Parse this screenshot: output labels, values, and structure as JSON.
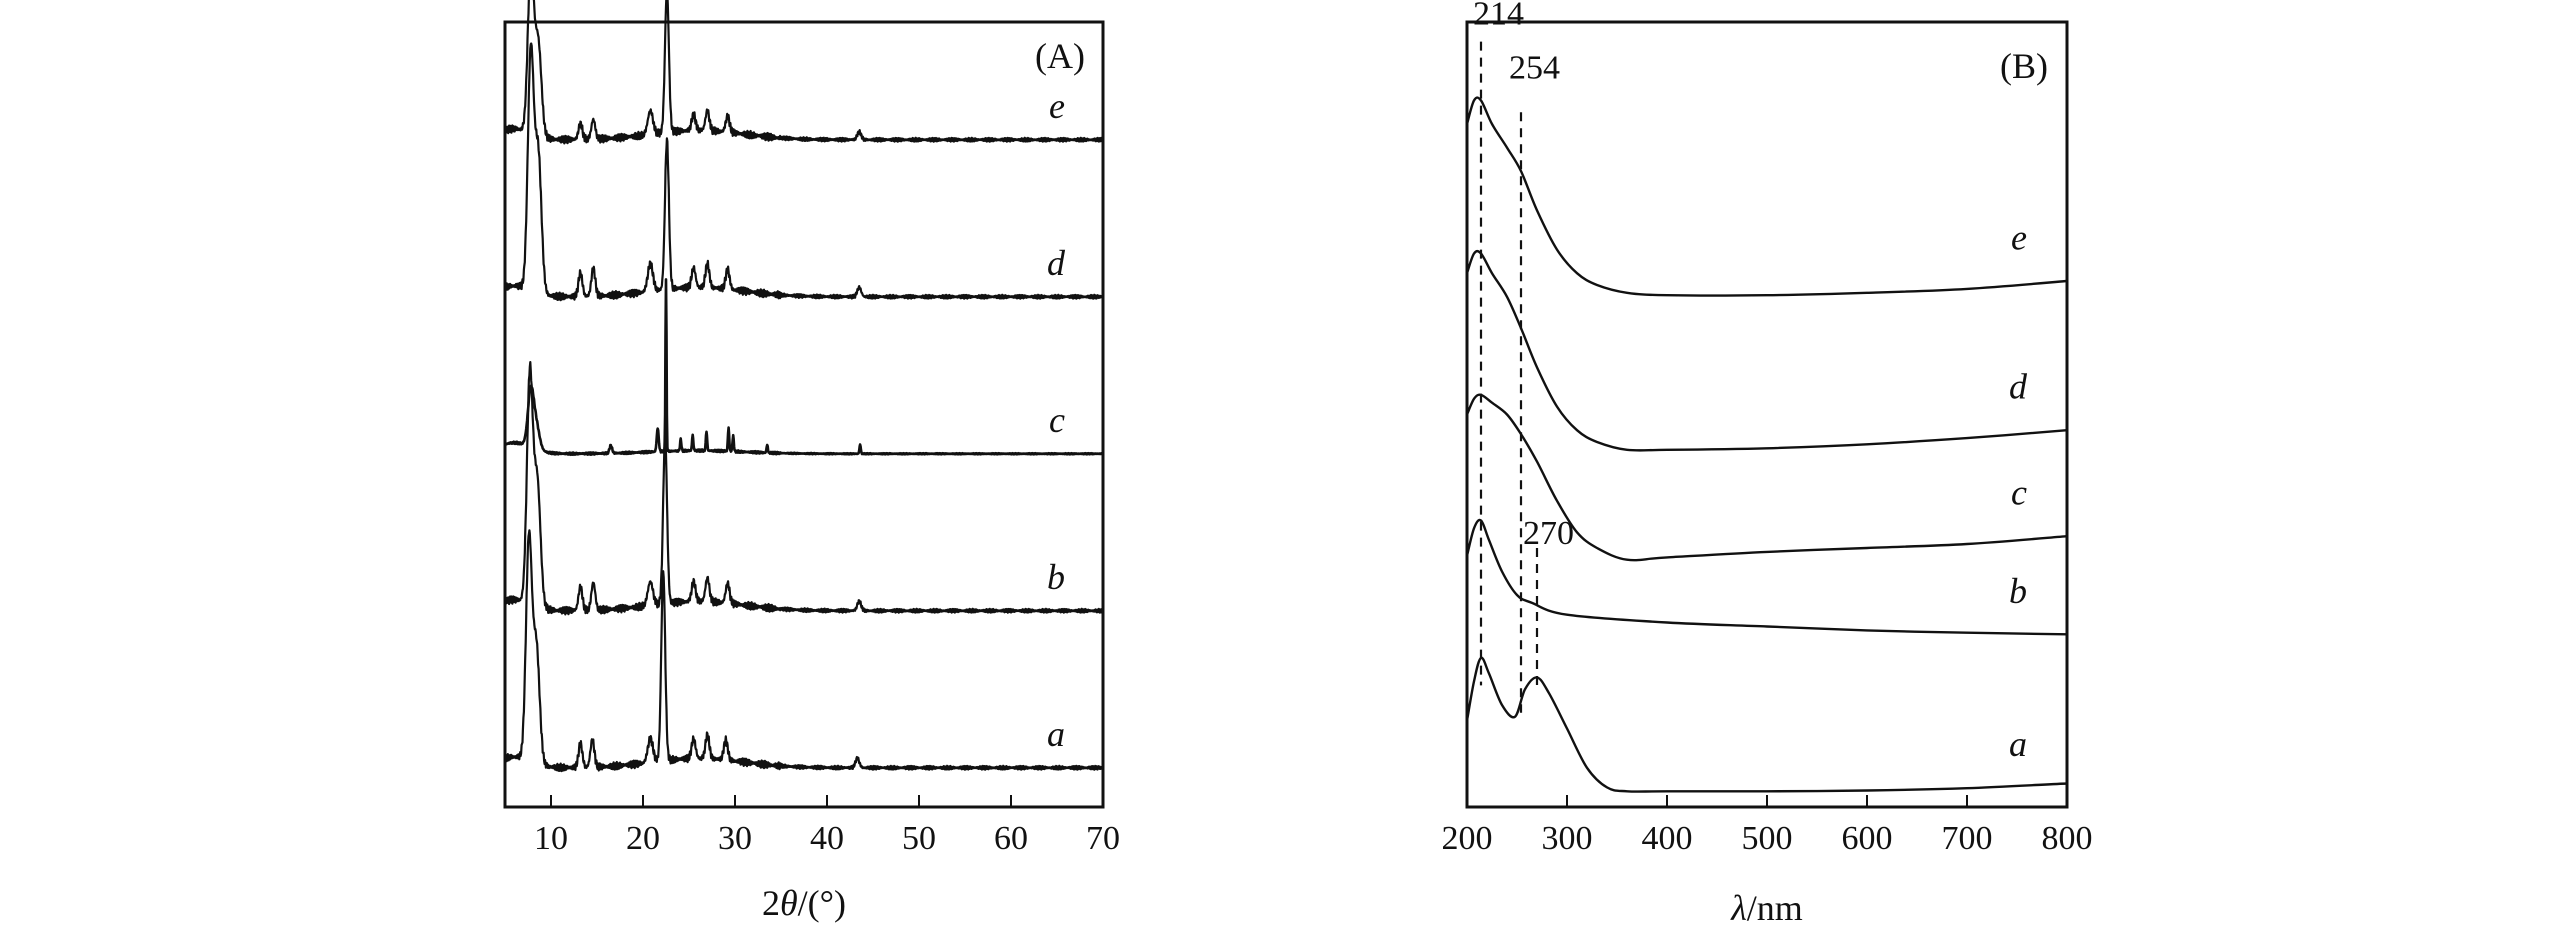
{
  "colors": {
    "line": "#111111",
    "background": "#ffffff"
  },
  "chart_data": [
    {
      "type": "line",
      "panel_label": "(A)",
      "xlabel_prefix": "2",
      "xlabel_symbol": "θ",
      "xlabel_suffix": "/(°)",
      "xlim": [
        5,
        70
      ],
      "xticks": [
        "10",
        "20",
        "30",
        "40",
        "50",
        "60",
        "70"
      ],
      "y_ticks_shown": false,
      "offset_stacked": true,
      "series": [
        {
          "name": "a",
          "baseline": 0.05,
          "peaks": [
            [
              7.6,
              0.28,
              0.45
            ],
            [
              8.4,
              0.15,
              0.5
            ],
            [
              13.2,
              0.03,
              0.3
            ],
            [
              14.5,
              0.035,
              0.3
            ],
            [
              20.8,
              0.03,
              0.4
            ],
            [
              22.2,
              0.24,
              0.3
            ],
            [
              25.5,
              0.025,
              0.3
            ],
            [
              27,
              0.03,
              0.3
            ],
            [
              29,
              0.025,
              0.3
            ],
            [
              43.3,
              0.012,
              0.3
            ]
          ]
        },
        {
          "name": "b",
          "baseline": 0.25,
          "peaks": [
            [
              7.7,
              0.29,
              0.45
            ],
            [
              8.5,
              0.16,
              0.5
            ],
            [
              13.2,
              0.03,
              0.3
            ],
            [
              14.6,
              0.035,
              0.3
            ],
            [
              20.8,
              0.03,
              0.4
            ],
            [
              22.4,
              0.21,
              0.3
            ],
            [
              25.5,
              0.025,
              0.3
            ],
            [
              27,
              0.03,
              0.3
            ],
            [
              29.2,
              0.025,
              0.3
            ],
            [
              43.5,
              0.012,
              0.3
            ]
          ]
        },
        {
          "name": "c",
          "baseline": 0.45,
          "peaks": [
            [
              7.8,
              0.07,
              0.45
            ],
            [
              8.4,
              0.03,
              0.5
            ],
            [
              16.5,
              0.01,
              0.2
            ],
            [
              21.6,
              0.03,
              0.15
            ],
            [
              22.5,
              0.22,
              0.08
            ],
            [
              24.1,
              0.015,
              0.1
            ],
            [
              25.4,
              0.02,
              0.1
            ],
            [
              26.9,
              0.025,
              0.1
            ],
            [
              29.3,
              0.03,
              0.1
            ],
            [
              29.8,
              0.02,
              0.1
            ],
            [
              33.5,
              0.01,
              0.1
            ],
            [
              43.6,
              0.012,
              0.1
            ]
          ]
        },
        {
          "name": "d",
          "baseline": 0.65,
          "peaks": [
            [
              7.8,
              0.3,
              0.45
            ],
            [
              8.6,
              0.18,
              0.5
            ],
            [
              13.2,
              0.03,
              0.3
            ],
            [
              14.6,
              0.035,
              0.3
            ],
            [
              20.8,
              0.035,
              0.4
            ],
            [
              22.6,
              0.19,
              0.3
            ],
            [
              25.5,
              0.025,
              0.3
            ],
            [
              27,
              0.03,
              0.3
            ],
            [
              29.2,
              0.025,
              0.3
            ],
            [
              43.5,
              0.012,
              0.3
            ]
          ]
        },
        {
          "name": "e",
          "baseline": 0.85,
          "peaks": [
            [
              7.8,
              0.21,
              0.45
            ],
            [
              8.6,
              0.12,
              0.5
            ],
            [
              13.2,
              0.02,
              0.3
            ],
            [
              14.6,
              0.025,
              0.3
            ],
            [
              20.8,
              0.03,
              0.4
            ],
            [
              22.6,
              0.18,
              0.3
            ],
            [
              25.5,
              0.02,
              0.3
            ],
            [
              27,
              0.025,
              0.3
            ],
            [
              29.2,
              0.02,
              0.3
            ],
            [
              43.5,
              0.01,
              0.3
            ]
          ]
        }
      ]
    },
    {
      "type": "line",
      "panel_label": "(B)",
      "xlabel_symbol": "λ",
      "xlabel_suffix": "/nm",
      "xlim": [
        200,
        800
      ],
      "xticks": [
        "200",
        "300",
        "400",
        "500",
        "600",
        "700",
        "800"
      ],
      "y_ticks_shown": false,
      "offset_stacked": true,
      "reference_lines": [
        {
          "x": 214,
          "label": "214"
        },
        {
          "x": 254,
          "label": "254"
        },
        {
          "x": 270,
          "label": "270"
        }
      ],
      "series": [
        {
          "name": "a",
          "points": [
            [
              200,
              0.11
            ],
            [
              207,
              0.16
            ],
            [
              214,
              0.19
            ],
            [
              222,
              0.17
            ],
            [
              235,
              0.13
            ],
            [
              248,
              0.115
            ],
            [
              258,
              0.15
            ],
            [
              270,
              0.165
            ],
            [
              282,
              0.145
            ],
            [
              300,
              0.1
            ],
            [
              320,
              0.05
            ],
            [
              340,
              0.025
            ],
            [
              360,
              0.02
            ],
            [
              400,
              0.02
            ],
            [
              500,
              0.02
            ],
            [
              600,
              0.021
            ],
            [
              700,
              0.024
            ],
            [
              800,
              0.03
            ]
          ]
        },
        {
          "name": "b",
          "points": [
            [
              200,
              0.32
            ],
            [
              207,
              0.355
            ],
            [
              214,
              0.365
            ],
            [
              222,
              0.34
            ],
            [
              235,
              0.3
            ],
            [
              250,
              0.27
            ],
            [
              265,
              0.26
            ],
            [
              300,
              0.245
            ],
            [
              400,
              0.235
            ],
            [
              500,
              0.23
            ],
            [
              600,
              0.225
            ],
            [
              700,
              0.222
            ],
            [
              800,
              0.22
            ]
          ]
        },
        {
          "name": "c",
          "points": [
            [
              200,
              0.5
            ],
            [
              207,
              0.52
            ],
            [
              214,
              0.525
            ],
            [
              225,
              0.515
            ],
            [
              240,
              0.5
            ],
            [
              254,
              0.475
            ],
            [
              270,
              0.44
            ],
            [
              290,
              0.39
            ],
            [
              310,
              0.35
            ],
            [
              330,
              0.33
            ],
            [
              360,
              0.315
            ],
            [
              400,
              0.318
            ],
            [
              500,
              0.325
            ],
            [
              600,
              0.33
            ],
            [
              700,
              0.335
            ],
            [
              800,
              0.345
            ]
          ]
        },
        {
          "name": "d",
          "points": [
            [
              200,
              0.68
            ],
            [
              207,
              0.705
            ],
            [
              214,
              0.705
            ],
            [
              225,
              0.68
            ],
            [
              240,
              0.65
            ],
            [
              254,
              0.61
            ],
            [
              270,
              0.56
            ],
            [
              290,
              0.51
            ],
            [
              310,
              0.48
            ],
            [
              330,
              0.465
            ],
            [
              360,
              0.455
            ],
            [
              400,
              0.455
            ],
            [
              500,
              0.457
            ],
            [
              600,
              0.462
            ],
            [
              700,
              0.47
            ],
            [
              800,
              0.48
            ]
          ]
        },
        {
          "name": "e",
          "points": [
            [
              200,
              0.87
            ],
            [
              207,
              0.9
            ],
            [
              214,
              0.9
            ],
            [
              225,
              0.87
            ],
            [
              240,
              0.84
            ],
            [
              254,
              0.81
            ],
            [
              270,
              0.76
            ],
            [
              290,
              0.71
            ],
            [
              310,
              0.68
            ],
            [
              330,
              0.665
            ],
            [
              360,
              0.655
            ],
            [
              400,
              0.652
            ],
            [
              500,
              0.652
            ],
            [
              600,
              0.655
            ],
            [
              700,
              0.66
            ],
            [
              800,
              0.67
            ]
          ]
        }
      ]
    }
  ]
}
